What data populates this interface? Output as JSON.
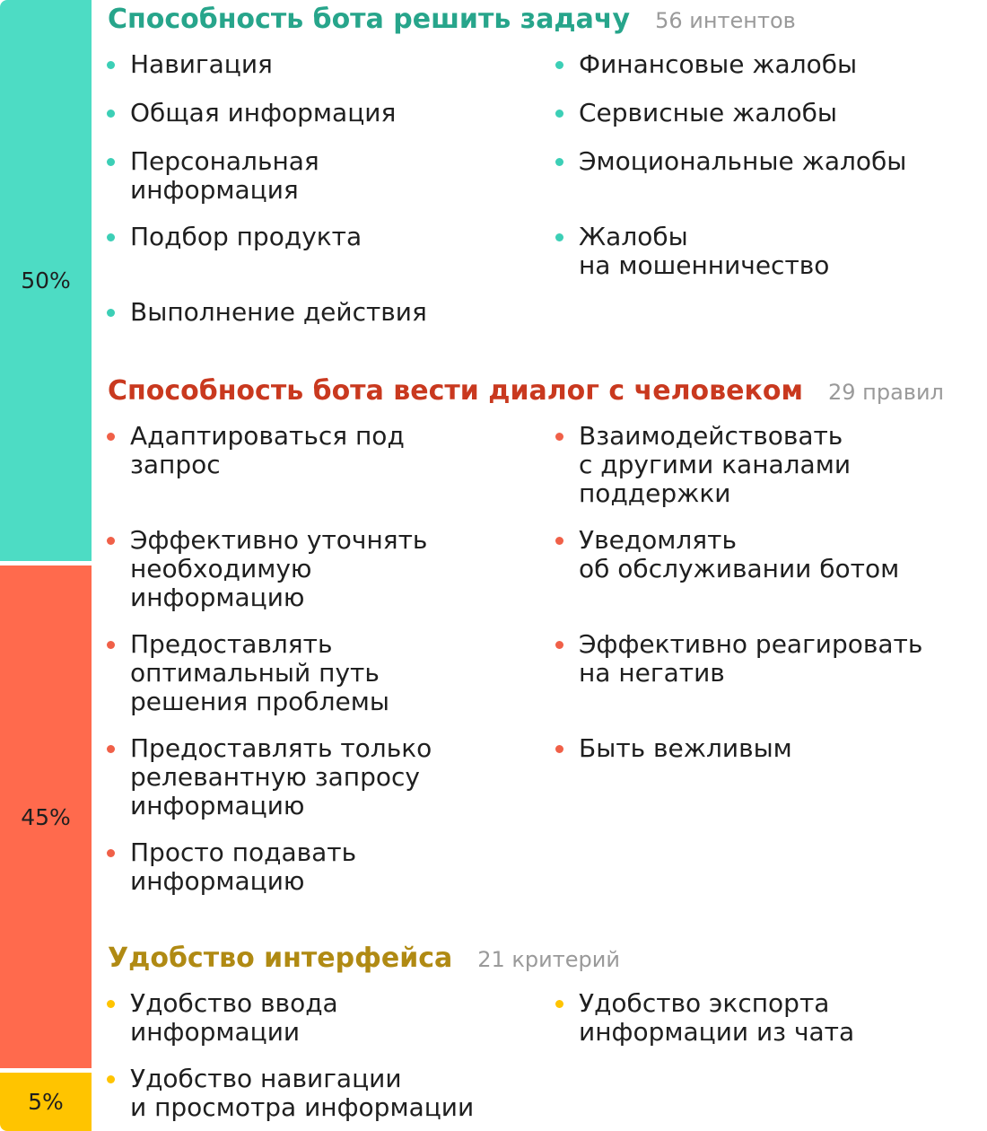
{
  "colors": {
    "teal": "#4ddcc4",
    "red": "#ff6a4d",
    "yellow": "#ffc400",
    "teal_title": "#27a58b",
    "red_title": "#c9391f",
    "yellow_title": "#b08a13"
  },
  "bars": [
    {
      "percent": "50%",
      "color": "#4ddcc4"
    },
    {
      "percent": "45%",
      "color": "#ff6a4d"
    },
    {
      "percent": "5%",
      "color": "#ffc400"
    }
  ],
  "sections": [
    {
      "title": "Способность бота решить задачу",
      "count": "56 интентов",
      "items": [
        "Навигация",
        "Финансовые жалобы",
        "Общая информация",
        "Сервисные жалобы",
        "Персональная\nинформация",
        "Эмоциональные жалобы",
        "Подбор продукта",
        "Жалобы\nна мошенничество",
        "Выполнение действия"
      ]
    },
    {
      "title": "Способность бота вести диалог с человеком",
      "count": "29 правил",
      "items": [
        "Адаптироваться под\nзапрос",
        "Взаимодействовать\nс другими каналами\nподдержки",
        "Эффективно уточнять\nнеобходимую\nинформацию",
        "Уведомлять\nоб обслуживании ботом",
        "Предоставлять\nоптимальный путь\nрешения проблемы",
        "Эффективно реагировать\nна негатив",
        "Предоставлять только\nрелевантную запросу\nинформацию",
        "Быть вежливым",
        "Просто подавать\nинформацию"
      ]
    },
    {
      "title": "Удобство интерфейса",
      "count": "21 критерий",
      "items": [
        "Удобство ввода\nинформации",
        "Удобство экспорта\nинформации из чата",
        "Удобство навигации\nи просмотра информации"
      ]
    }
  ]
}
